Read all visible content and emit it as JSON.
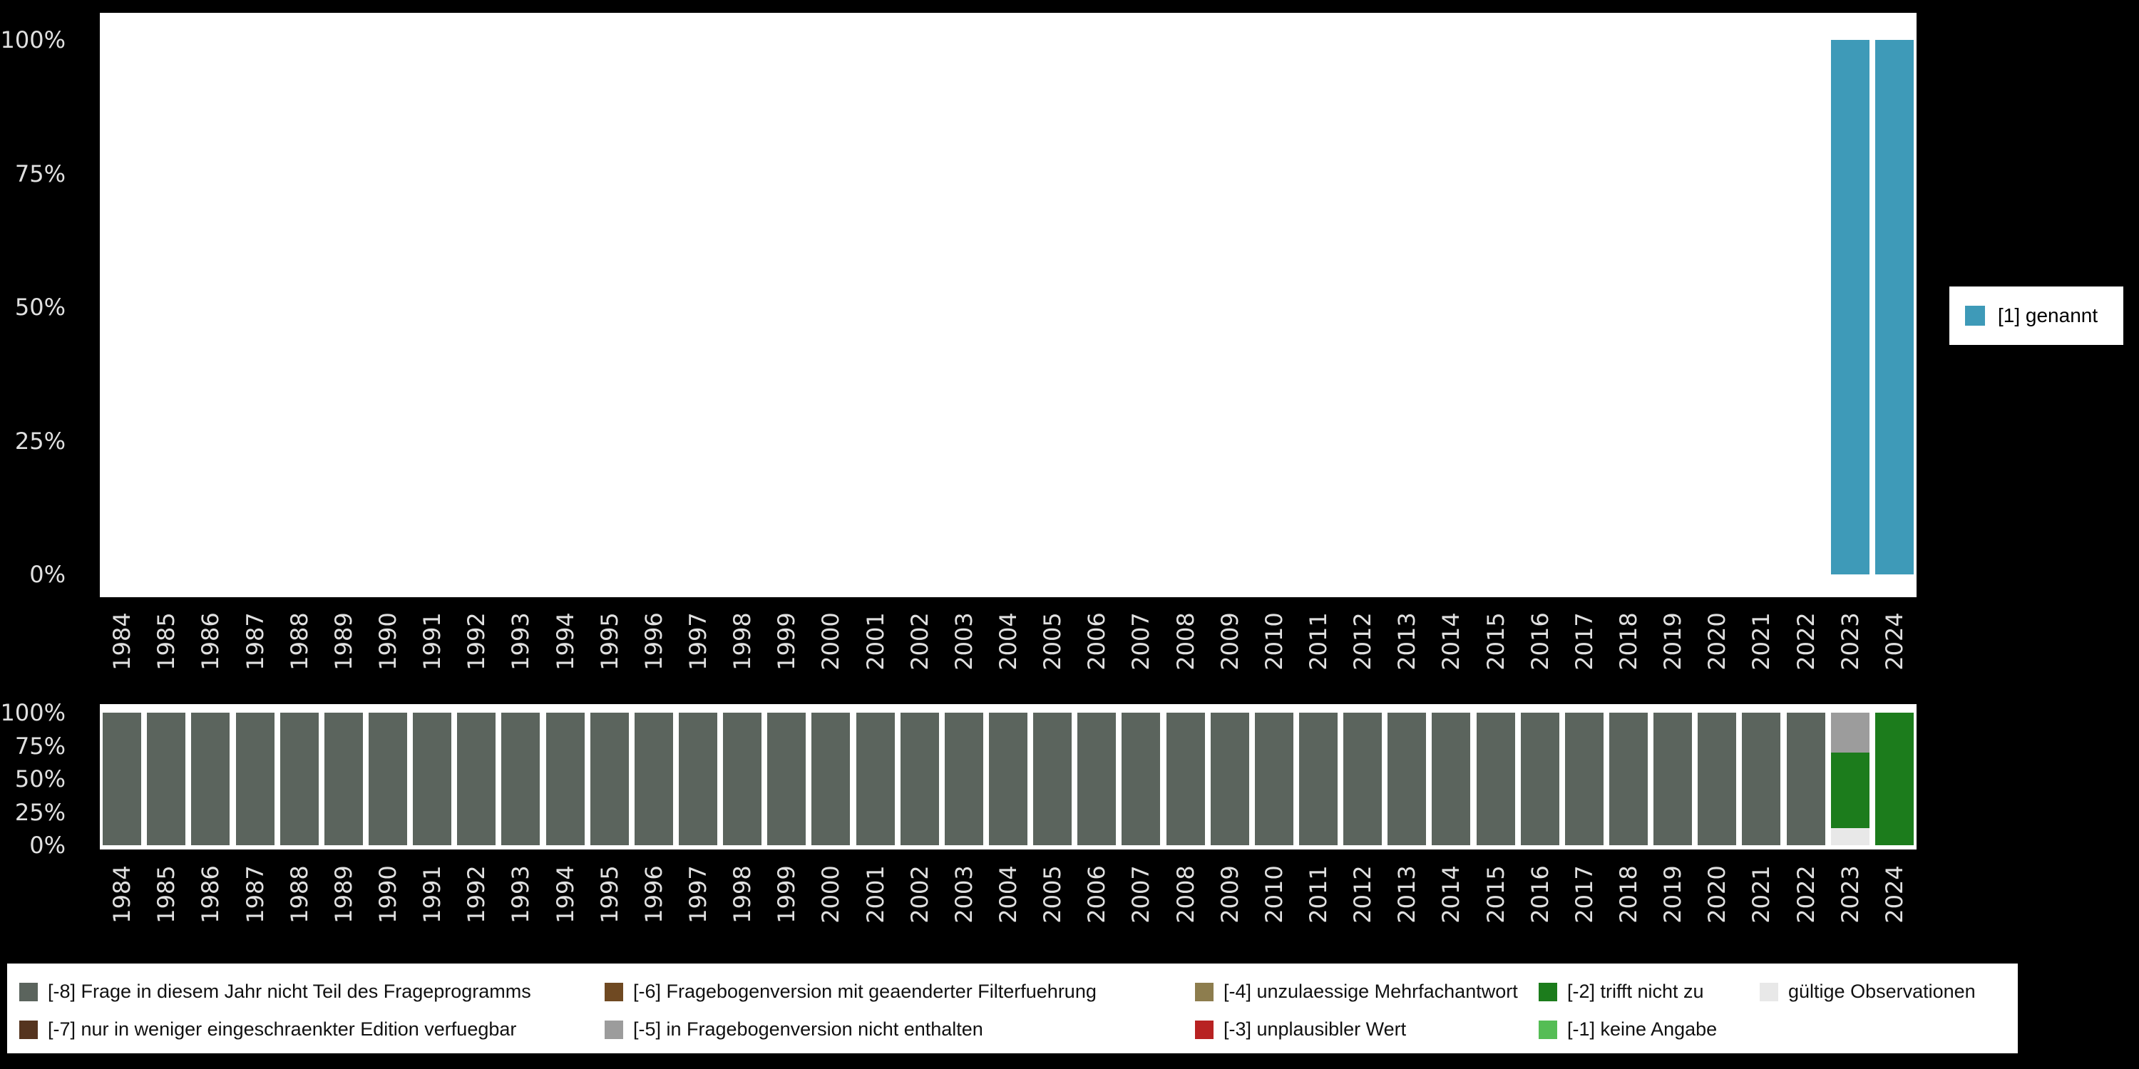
{
  "figure": {
    "background": "#000000",
    "panel_background": "#ffffff",
    "axis_text_color": "#e0e0e0"
  },
  "top_legend": {
    "label": "[1] genannt",
    "color": "#3e9ab8"
  },
  "bottom_legend": {
    "rows": [
      [
        {
          "label": "[-8] Frage in diesem Jahr nicht Teil des Frageprogramms",
          "color": "#5b645d"
        },
        {
          "label": "[-6] Fragebogenversion mit geaenderter Filterfuehrung",
          "color": "#6f4922"
        },
        {
          "label": "[-4] unzulaessige Mehrfachantwort",
          "color": "#8d7d4e"
        },
        {
          "label": "[-2] trifft nicht zu",
          "color": "#1c7c1c"
        },
        {
          "label": "gültige Observationen",
          "color": "#e8e8e8"
        }
      ],
      [
        {
          "label": "[-7] nur in weniger eingeschraenkter Edition verfuegbar",
          "color": "#55341f"
        },
        {
          "label": "[-5] in Fragebogenversion nicht enthalten",
          "color": "#9c9c9c"
        },
        {
          "label": "[-3] unplausibler Wert",
          "color": "#b82222"
        },
        {
          "label": "[-1] keine Angabe",
          "color": "#55bd55"
        }
      ]
    ]
  },
  "chart_data": [
    {
      "name": "valid-value-shares-by-year",
      "type": "bar",
      "stacked": true,
      "title": "",
      "xlabel": "",
      "ylabel": "",
      "ylim": [
        0,
        100
      ],
      "unit": "%",
      "grid": false,
      "legend_position": "right",
      "yticks": [
        "100%",
        "75%",
        "50%",
        "25%",
        "0%"
      ],
      "categories": [
        "1984",
        "1985",
        "1986",
        "1987",
        "1988",
        "1989",
        "1990",
        "1991",
        "1992",
        "1993",
        "1994",
        "1995",
        "1996",
        "1997",
        "1998",
        "1999",
        "2000",
        "2001",
        "2002",
        "2003",
        "2004",
        "2005",
        "2006",
        "2007",
        "2008",
        "2009",
        "2010",
        "2011",
        "2012",
        "2013",
        "2014",
        "2015",
        "2016",
        "2017",
        "2018",
        "2019",
        "2020",
        "2021",
        "2022",
        "2023",
        "2024"
      ],
      "series": [
        {
          "name": "[1] genannt",
          "color": "#3e9ab8",
          "values": [
            0,
            0,
            0,
            0,
            0,
            0,
            0,
            0,
            0,
            0,
            0,
            0,
            0,
            0,
            0,
            0,
            0,
            0,
            0,
            0,
            0,
            0,
            0,
            0,
            0,
            0,
            0,
            0,
            0,
            0,
            0,
            0,
            0,
            0,
            0,
            0,
            0,
            0,
            0,
            100,
            100
          ]
        }
      ]
    },
    {
      "name": "missing-value-shares-by-year",
      "type": "bar",
      "stacked": true,
      "title": "",
      "xlabel": "",
      "ylabel": "",
      "ylim": [
        0,
        100
      ],
      "unit": "%",
      "grid": false,
      "legend_position": "bottom",
      "yticks": [
        "100%",
        "75%",
        "50%",
        "25%",
        "0%"
      ],
      "categories": [
        "1984",
        "1985",
        "1986",
        "1987",
        "1988",
        "1989",
        "1990",
        "1991",
        "1992",
        "1993",
        "1994",
        "1995",
        "1996",
        "1997",
        "1998",
        "1999",
        "2000",
        "2001",
        "2002",
        "2003",
        "2004",
        "2005",
        "2006",
        "2007",
        "2008",
        "2009",
        "2010",
        "2011",
        "2012",
        "2013",
        "2014",
        "2015",
        "2016",
        "2017",
        "2018",
        "2019",
        "2020",
        "2021",
        "2022",
        "2023",
        "2024"
      ],
      "series": [
        {
          "name": "gültige Observationen",
          "color": "#e8e8e8",
          "values": [
            0,
            0,
            0,
            0,
            0,
            0,
            0,
            0,
            0,
            0,
            0,
            0,
            0,
            0,
            0,
            0,
            0,
            0,
            0,
            0,
            0,
            0,
            0,
            0,
            0,
            0,
            0,
            0,
            0,
            0,
            0,
            0,
            0,
            0,
            0,
            0,
            0,
            0,
            0,
            13,
            0
          ]
        },
        {
          "name": "[-2] trifft nicht zu",
          "color": "#1c7c1c",
          "values": [
            0,
            0,
            0,
            0,
            0,
            0,
            0,
            0,
            0,
            0,
            0,
            0,
            0,
            0,
            0,
            0,
            0,
            0,
            0,
            0,
            0,
            0,
            0,
            0,
            0,
            0,
            0,
            0,
            0,
            0,
            0,
            0,
            0,
            0,
            0,
            0,
            0,
            0,
            0,
            57,
            100
          ]
        },
        {
          "name": "[-5] in Fragebogenversion nicht enthalten",
          "color": "#9c9c9c",
          "values": [
            0,
            0,
            0,
            0,
            0,
            0,
            0,
            0,
            0,
            0,
            0,
            0,
            0,
            0,
            0,
            0,
            0,
            0,
            0,
            0,
            0,
            0,
            0,
            0,
            0,
            0,
            0,
            0,
            0,
            0,
            0,
            0,
            0,
            0,
            0,
            0,
            0,
            0,
            0,
            30,
            0
          ]
        },
        {
          "name": "[-8] Frage in diesem Jahr nicht Teil des Frageprogramms",
          "color": "#5b645d",
          "values": [
            100,
            100,
            100,
            100,
            100,
            100,
            100,
            100,
            100,
            100,
            100,
            100,
            100,
            100,
            100,
            100,
            100,
            100,
            100,
            100,
            100,
            100,
            100,
            100,
            100,
            100,
            100,
            100,
            100,
            100,
            100,
            100,
            100,
            100,
            100,
            100,
            100,
            100,
            100,
            0,
            0
          ]
        }
      ]
    }
  ]
}
